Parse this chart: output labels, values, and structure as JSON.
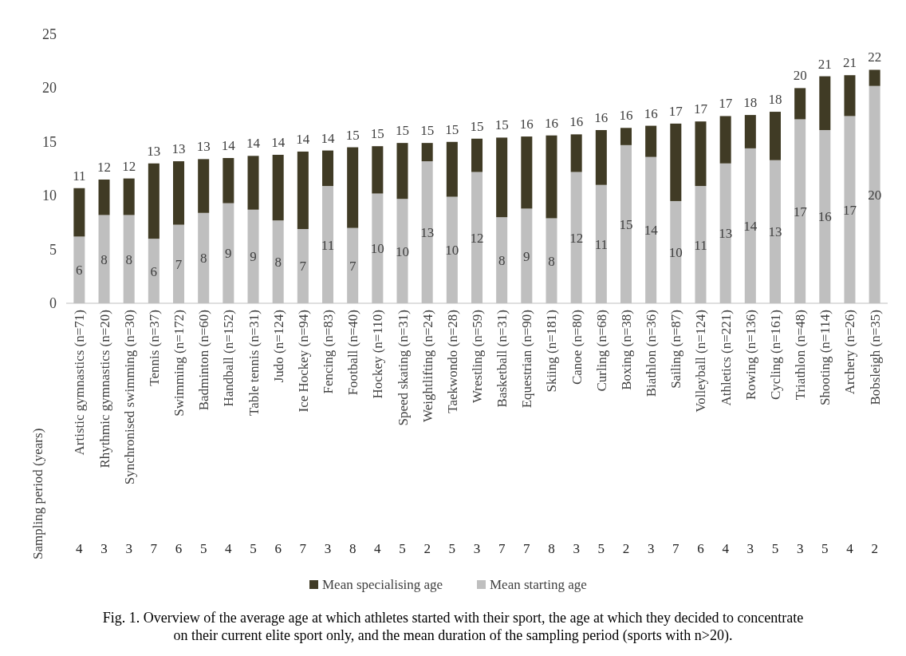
{
  "chart_data": {
    "type": "bar",
    "stacked": true,
    "categories": [
      "Artistic gymnastics (n=71)",
      "Rhythmic gymnastics (n=20)",
      "Synchronised swimming (n=30)",
      "Tennis (n=37)",
      "Swimming (n=172)",
      "Badminton (n=60)",
      "Handball (n=152)",
      "Table tennis (n=31)",
      "Judo (n=124)",
      "Ice Hockey (n=94)",
      "Fencing (n=83)",
      "Football (n=40)",
      "Hockey (n=110)",
      "Speed skating (n=31)",
      "Weightlifting (n=24)",
      "Taekwondo (n=28)",
      "Wrestling (n=59)",
      "Basketball (n=31)",
      "Equestrian (n=90)",
      "Skiing (n=181)",
      "Canoe (n=80)",
      "Curling (n=68)",
      "Boxing (n=38)",
      "Biathlon (n=36)",
      "Sailing (n=87)",
      "Volleyball (n=124)",
      "Athletics (n=221)",
      "Rowing (n=136)",
      "Cycling (n=161)",
      "Triathlon (n=48)",
      "Shooting (n=114)",
      "Archery (n=26)",
      "Bobsleigh (n=35)"
    ],
    "series": [
      {
        "name": "Mean starting age",
        "color": "#bfbfbf",
        "values": [
          6.2,
          8.2,
          8.2,
          6.0,
          7.3,
          8.4,
          9.3,
          8.7,
          7.7,
          6.9,
          10.9,
          7.0,
          10.2,
          9.7,
          13.2,
          9.9,
          12.2,
          8.0,
          8.8,
          7.9,
          12.2,
          11.0,
          14.7,
          13.6,
          9.5,
          10.9,
          13.0,
          14.4,
          13.3,
          17.1,
          16.1,
          17.4,
          20.2
        ],
        "value_labels": [
          "6",
          "8",
          "8",
          "6",
          "7",
          "8",
          "9",
          "9",
          "8",
          "7",
          "11",
          "7",
          "10",
          "10",
          "13",
          "10",
          "12",
          "8",
          "9",
          "8",
          "12",
          "11",
          "15",
          "14",
          "10",
          "11",
          "13",
          "14",
          "13",
          "17",
          "16",
          "17",
          "20"
        ]
      },
      {
        "name": "Mean specialising age",
        "color": "#403b25",
        "values": [
          4.5,
          3.3,
          3.4,
          7.0,
          5.9,
          5.0,
          4.2,
          5.0,
          6.1,
          7.2,
          3.3,
          7.5,
          4.4,
          5.2,
          1.7,
          5.1,
          3.1,
          7.4,
          6.7,
          7.7,
          3.5,
          5.1,
          1.6,
          2.9,
          7.2,
          6.0,
          4.4,
          3.1,
          4.5,
          2.9,
          5.0,
          3.8,
          1.5
        ],
        "value_labels": [
          "4",
          "3",
          "3",
          "7",
          "6",
          "5",
          "4",
          "5",
          "6",
          "7",
          "3",
          "8",
          "4",
          "5",
          "2",
          "5",
          "3",
          "7",
          "7",
          "8",
          "3",
          "5",
          "2",
          "3",
          "7",
          "6",
          "4",
          "3",
          "5",
          "3",
          "5",
          "4",
          "2"
        ]
      }
    ],
    "totals": [
      "11",
      "12",
      "12",
      "13",
      "13",
      "13",
      "14",
      "14",
      "14",
      "14",
      "14",
      "15",
      "15",
      "15",
      "15",
      "15",
      "15",
      "15",
      "16",
      "16",
      "16",
      "16",
      "16",
      "16",
      "17",
      "17",
      "17",
      "18",
      "18",
      "20",
      "21",
      "21",
      "22"
    ],
    "ylim": [
      0,
      25
    ],
    "yticks": [
      0,
      5,
      10,
      15,
      20,
      25
    ],
    "grid": false,
    "legend": "bottom",
    "annotations": [
      "Sampling period (years)",
      "Fig. 1. Overview of the average age at which athletes started with their sport, the age at which they decided to concentrate on their current elite sport only, and the mean duration of the sampling period (sports with n>20)."
    ]
  }
}
